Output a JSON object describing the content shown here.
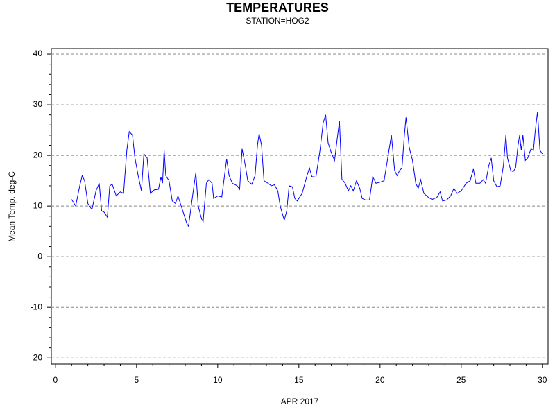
{
  "chart_data": {
    "type": "line",
    "title": "TEMPERATURES",
    "subtitle": "STATION=HOG2",
    "x_label": "APR 2017",
    "y_label": "Mean Temp. deg-C",
    "color": "#0000ff",
    "grid": true,
    "xlim": [
      -0.25,
      30.35
    ],
    "ylim": [
      -21.2,
      41.1
    ],
    "xticks": [
      0,
      5,
      10,
      15,
      20,
      25,
      30
    ],
    "xminorticks": [
      1,
      2,
      3,
      4,
      6,
      7,
      8,
      9,
      11,
      12,
      13,
      14,
      16,
      17,
      18,
      19,
      21,
      22,
      23,
      24,
      26,
      27,
      28,
      29
    ],
    "yticks": [
      -20,
      -10,
      0,
      10,
      20,
      30,
      40
    ],
    "yminorticks": [
      -18,
      -16,
      -14,
      -12,
      -8,
      -6,
      -4,
      -2,
      2,
      4,
      6,
      8,
      12,
      14,
      16,
      18,
      22,
      24,
      26,
      28,
      32,
      34,
      36,
      38
    ],
    "x": [
      1.0,
      1.25,
      1.5,
      1.65,
      1.8,
      2.0,
      2.25,
      2.5,
      2.7,
      2.85,
      3.0,
      3.2,
      3.35,
      3.5,
      3.75,
      4.0,
      4.2,
      4.4,
      4.55,
      4.75,
      4.9,
      5.1,
      5.3,
      5.45,
      5.65,
      5.85,
      6.1,
      6.35,
      6.5,
      6.6,
      6.7,
      6.8,
      7.0,
      7.2,
      7.4,
      7.55,
      7.7,
      7.9,
      8.1,
      8.2,
      8.45,
      8.65,
      8.8,
      9.0,
      9.1,
      9.3,
      9.45,
      9.65,
      9.75,
      10.0,
      10.25,
      10.55,
      10.7,
      10.9,
      11.2,
      11.35,
      11.5,
      11.7,
      11.85,
      12.1,
      12.3,
      12.45,
      12.55,
      12.7,
      12.85,
      13.1,
      13.3,
      13.5,
      13.7,
      13.85,
      14.1,
      14.25,
      14.4,
      14.6,
      14.75,
      14.9,
      15.2,
      15.5,
      15.65,
      15.8,
      16.05,
      16.3,
      16.5,
      16.65,
      16.8,
      17.0,
      17.2,
      17.35,
      17.5,
      17.65,
      17.85,
      18.05,
      18.2,
      18.35,
      18.55,
      18.75,
      18.9,
      19.1,
      19.35,
      19.55,
      19.75,
      20.0,
      20.25,
      20.55,
      20.7,
      20.9,
      21.05,
      21.2,
      21.35,
      21.5,
      21.6,
      21.8,
      22.0,
      22.2,
      22.35,
      22.5,
      22.7,
      22.95,
      23.2,
      23.5,
      23.7,
      23.85,
      24.1,
      24.35,
      24.55,
      24.75,
      25.0,
      25.3,
      25.55,
      25.75,
      25.9,
      26.15,
      26.35,
      26.5,
      26.7,
      26.85,
      27.0,
      27.2,
      27.4,
      27.6,
      27.75,
      27.85,
      28.05,
      28.2,
      28.35,
      28.5,
      28.6,
      28.7,
      28.8,
      28.95,
      29.1,
      29.3,
      29.45,
      29.55,
      29.7,
      29.85,
      30.0
    ],
    "values": [
      11.3,
      10,
      14,
      16,
      15,
      10.5,
      9.3,
      13,
      14.5,
      9,
      8.8,
      7.8,
      14,
      14.3,
      12,
      12.8,
      12.5,
      21,
      24.7,
      24,
      19.5,
      16,
      13,
      20.3,
      19.5,
      12.5,
      13.2,
      13.3,
      15.7,
      14.5,
      21,
      16,
      15,
      11,
      10.5,
      12,
      10.5,
      8.5,
      6.5,
      6,
      12,
      16.6,
      10,
      7.5,
      6.9,
      14.5,
      15.2,
      14.5,
      11.5,
      12,
      11.8,
      19.3,
      16,
      14.5,
      14,
      13.3,
      21.3,
      18,
      15,
      14.3,
      16,
      22,
      24.3,
      22,
      15,
      14.5,
      14,
      14.2,
      13,
      10,
      7.2,
      9,
      14,
      13.8,
      11.5,
      11,
      12.5,
      16,
      17.5,
      15.8,
      15.7,
      21,
      26.5,
      28,
      22.5,
      20.5,
      19,
      23,
      26.8,
      15.3,
      14.5,
      13,
      14,
      13,
      15,
      13.5,
      11.5,
      11.2,
      11.2,
      15.8,
      14.5,
      14.7,
      15,
      21,
      24,
      17,
      16,
      17,
      17.5,
      24,
      27.5,
      21.5,
      19,
      14.5,
      13.5,
      15.2,
      12.5,
      11.8,
      11.3,
      11.7,
      12.8,
      11,
      11.2,
      12,
      13.5,
      12.5,
      13,
      14.5,
      15,
      17.3,
      14.5,
      14.5,
      15.2,
      14.5,
      18,
      19.5,
      15,
      13.8,
      14,
      18,
      24,
      19.5,
      17,
      16.8,
      17.5,
      22,
      24,
      21,
      24,
      19,
      19.5,
      21.3,
      21,
      24.5,
      28.6,
      21,
      20.3
    ]
  }
}
